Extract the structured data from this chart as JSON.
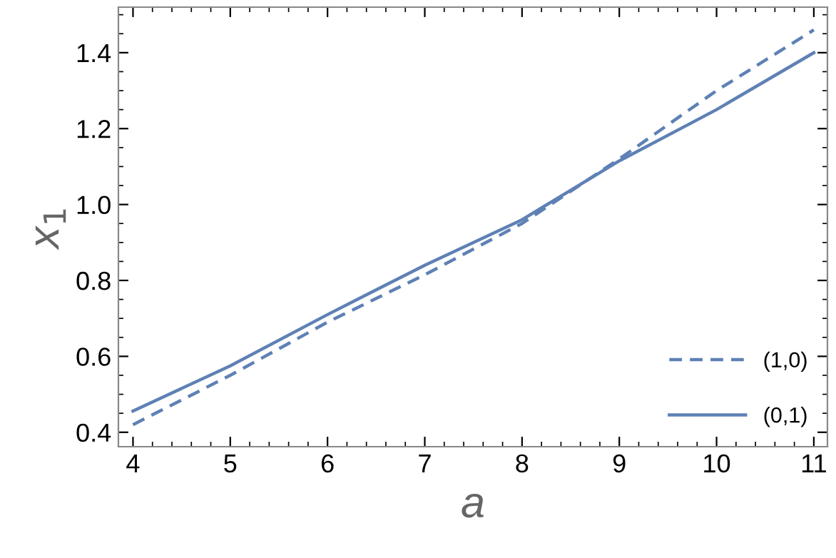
{
  "chart_data": {
    "type": "line",
    "xlabel": "a",
    "ylabel": "x$_{1}$",
    "x": [
      4,
      5,
      6,
      7,
      8,
      9,
      10,
      11
    ],
    "series": [
      {
        "name": "(1,0)",
        "color": "#5e81b5",
        "line_style": "dashed",
        "values": [
          0.42,
          0.55,
          0.69,
          0.815,
          0.95,
          1.12,
          1.3,
          1.46
        ]
      },
      {
        "name": "(0,1)",
        "color": "#5e81b5",
        "line_style": "solid",
        "values": [
          0.456,
          0.575,
          0.71,
          0.84,
          0.96,
          1.115,
          1.25,
          1.4
        ]
      }
    ],
    "xlim": [
      3.85,
      11.14
    ],
    "ylim": [
      0.362,
      1.52
    ],
    "xticks": [
      4,
      5,
      6,
      7,
      8,
      9,
      10,
      11
    ],
    "yticks": [
      {
        "value": 0.4,
        "label": "0.4"
      },
      {
        "value": 0.6,
        "label": "0.6"
      },
      {
        "value": 0.8,
        "label": "0.8"
      },
      {
        "value": 1.0,
        "label": "1.0"
      },
      {
        "value": 1.2,
        "label": "1.2"
      },
      {
        "value": 1.4,
        "label": "1.4"
      }
    ],
    "grid": false,
    "legend": "bottom right",
    "marker": "none"
  }
}
